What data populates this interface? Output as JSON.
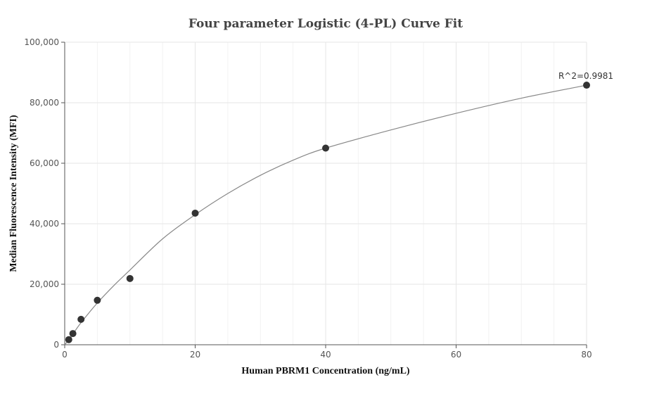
{
  "chart_data": {
    "type": "scatter",
    "title": "Four parameter Logistic (4-PL) Curve Fit",
    "xlabel": "Human PBRM1 Concentration (ng/mL)",
    "ylabel": "Median Fluorescence Intensity (MFI)",
    "xlim": [
      0,
      80
    ],
    "ylim": [
      0,
      100000
    ],
    "x_ticks": [
      0,
      20,
      40,
      60,
      80
    ],
    "y_ticks": [
      0,
      20000,
      40000,
      60000,
      80000,
      100000
    ],
    "x_tick_labels": [
      "0",
      "20",
      "40",
      "60",
      "80"
    ],
    "y_tick_labels": [
      "0",
      "20,000",
      "40,000",
      "60,000",
      "80,000",
      "100,000"
    ],
    "grid": true,
    "points": [
      {
        "x": 0.625,
        "y": 1700
      },
      {
        "x": 1.25,
        "y": 3700
      },
      {
        "x": 2.5,
        "y": 8400
      },
      {
        "x": 5,
        "y": 14700
      },
      {
        "x": 10,
        "y": 21900
      },
      {
        "x": 20,
        "y": 43500
      },
      {
        "x": 40,
        "y": 65000
      },
      {
        "x": 80,
        "y": 85800
      }
    ],
    "fit_curve": [
      {
        "x": 0,
        "y": 0
      },
      {
        "x": 0.625,
        "y": 1600
      },
      {
        "x": 1.25,
        "y": 3500
      },
      {
        "x": 2.5,
        "y": 7300
      },
      {
        "x": 5,
        "y": 13800
      },
      {
        "x": 7.5,
        "y": 19500
      },
      {
        "x": 10,
        "y": 24700
      },
      {
        "x": 15,
        "y": 35000
      },
      {
        "x": 20,
        "y": 43000
      },
      {
        "x": 25,
        "y": 50000
      },
      {
        "x": 30,
        "y": 56000
      },
      {
        "x": 35,
        "y": 61000
      },
      {
        "x": 40,
        "y": 65000
      },
      {
        "x": 50,
        "y": 71000
      },
      {
        "x": 60,
        "y": 76500
      },
      {
        "x": 70,
        "y": 81500
      },
      {
        "x": 80,
        "y": 85800
      }
    ],
    "annotation": {
      "text": "R^2=0.9981",
      "x": 80,
      "y": 85800
    },
    "colors": {
      "points": "#333333",
      "curve": "#888888",
      "grid": "#e6e6e6",
      "axis": "#555555"
    }
  }
}
